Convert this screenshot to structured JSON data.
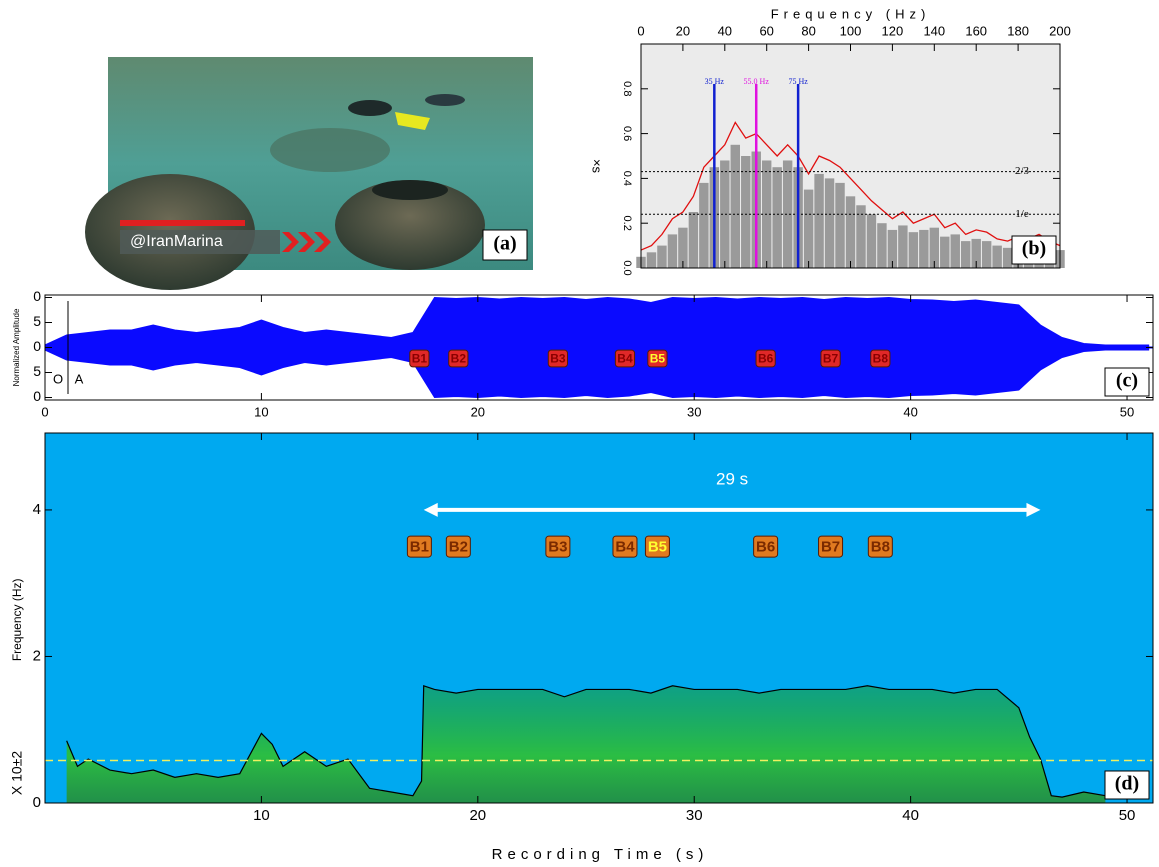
{
  "photo": {
    "caption": "@IranMarina",
    "label": "(a)"
  },
  "chart_data": [
    {
      "type": "spectrum",
      "label": "(b)",
      "xlabel": "Frequency (Hz)",
      "ylabel": "×s",
      "background": "#ebebeb",
      "x": [
        0,
        5,
        10,
        15,
        20,
        25,
        30,
        35,
        40,
        45,
        50,
        55,
        60,
        65,
        70,
        75,
        80,
        85,
        90,
        95,
        100,
        105,
        110,
        115,
        120,
        125,
        130,
        135,
        140,
        145,
        150,
        155,
        160,
        165,
        170,
        175,
        180,
        185,
        190,
        195,
        200
      ],
      "series": [
        {
          "color": "#9a9a9a",
          "values": [
            0.05,
            0.07,
            0.1,
            0.15,
            0.18,
            0.25,
            0.38,
            0.45,
            0.48,
            0.55,
            0.5,
            0.52,
            0.48,
            0.45,
            0.48,
            0.45,
            0.35,
            0.42,
            0.4,
            0.38,
            0.32,
            0.28,
            0.24,
            0.2,
            0.17,
            0.19,
            0.16,
            0.17,
            0.18,
            0.14,
            0.15,
            0.12,
            0.13,
            0.12,
            0.1,
            0.09,
            0.11,
            0.1,
            0.11,
            0.09,
            0.08
          ]
        },
        {
          "color": "#e01010",
          "values": [
            0.08,
            0.1,
            0.15,
            0.22,
            0.25,
            0.32,
            0.45,
            0.5,
            0.55,
            0.65,
            0.58,
            0.6,
            0.55,
            0.5,
            0.55,
            0.5,
            0.42,
            0.5,
            0.48,
            0.45,
            0.4,
            0.35,
            0.3,
            0.26,
            0.22,
            0.25,
            0.2,
            0.22,
            0.24,
            0.18,
            0.2,
            0.15,
            0.17,
            0.16,
            0.13,
            0.12,
            0.14,
            0.13,
            0.15,
            0.12,
            0.1
          ]
        }
      ],
      "xlim": [
        0,
        200
      ],
      "xticks": [
        0,
        20,
        40,
        60,
        80,
        100,
        120,
        140,
        160,
        180,
        200
      ],
      "ylim": [
        0,
        1
      ],
      "yticks": [
        {
          "value": 0,
          "label": "0.0"
        },
        0.2,
        0.4,
        0.6,
        0.8
      ],
      "vlines": [
        {
          "x": 35,
          "label": "35 Hz",
          "color": "#1020d0"
        },
        {
          "x": 55,
          "label": "55.0 Hz",
          "color": "#e010e0"
        },
        {
          "x": 75,
          "label": "75 Hz",
          "color": "#1020d0"
        }
      ],
      "hlines": [
        {
          "y": 0.43,
          "label": "2/3"
        },
        {
          "y": 0.24,
          "label": "1/e"
        }
      ]
    },
    {
      "type": "waveform",
      "label": "(c)",
      "ylabel": "Normalized Amplitude",
      "corner_text": [
        "O",
        "A"
      ],
      "color": "#0a0aff",
      "box_color": "#e02828",
      "x": [
        0,
        1,
        2,
        3,
        4,
        5,
        6,
        7,
        8,
        9,
        10,
        11,
        12,
        13,
        14,
        15,
        16,
        17,
        18,
        19,
        20,
        21,
        22,
        23,
        24,
        25,
        26,
        27,
        28,
        29,
        30,
        31,
        32,
        33,
        34,
        35,
        36,
        37,
        38,
        39,
        40,
        41,
        42,
        43,
        44,
        45,
        46,
        47,
        48,
        49,
        50,
        51
      ],
      "values": [
        0.05,
        0.25,
        0.3,
        0.35,
        0.35,
        0.45,
        0.35,
        0.3,
        0.35,
        0.4,
        0.55,
        0.4,
        0.3,
        0.35,
        0.3,
        0.25,
        0.2,
        0.3,
        1.0,
        0.98,
        1.0,
        0.97,
        1.0,
        0.98,
        1.0,
        0.96,
        1.0,
        0.97,
        0.9,
        1.0,
        0.98,
        1.0,
        0.97,
        1.0,
        0.98,
        1.0,
        0.96,
        1.0,
        0.98,
        1.0,
        0.96,
        0.95,
        0.92,
        0.95,
        0.9,
        0.85,
        0.45,
        0.2,
        0.08,
        0.05,
        0.05,
        0.05
      ],
      "xlim": [
        0,
        51.2
      ],
      "xticks": [
        0,
        10,
        20,
        30,
        40,
        50
      ],
      "ylim": [
        -1.05,
        1.05
      ],
      "yticks": [
        {
          "value": 1,
          "label": "0"
        },
        {
          "value": 0.5,
          "label": "5"
        },
        0,
        {
          "value": -0.5,
          "label": "5"
        },
        {
          "value": -1,
          "label": "0"
        }
      ],
      "markers": [
        {
          "text": "B1",
          "x": 17.3,
          "text_color": "#8a0000"
        },
        {
          "text": "B2",
          "x": 19.1,
          "text_color": "#8a0000"
        },
        {
          "text": "B3",
          "x": 23.7,
          "text_color": "#8a0000"
        },
        {
          "text": "B4",
          "x": 26.8,
          "text_color": "#8a0000"
        },
        {
          "text": "B5",
          "x": 28.3,
          "text_color": "#ffff30"
        },
        {
          "text": "B6",
          "x": 33.3,
          "text_color": "#8a0000"
        },
        {
          "text": "B7",
          "x": 36.3,
          "text_color": "#8a0000"
        },
        {
          "text": "B8",
          "x": 38.6,
          "text_color": "#8a0000"
        }
      ]
    },
    {
      "type": "spectrogram",
      "label": "(d)",
      "xlabel": "Recording Time (s)",
      "ylabel": "Frequency (Hz)",
      "yscale_label": "X 10±2",
      "background": "#00a9f0",
      "color": "#000000",
      "box_color": "#e07a20",
      "x": [
        1,
        1.5,
        2,
        3,
        4,
        5,
        6,
        7,
        8,
        9,
        10,
        10.5,
        11,
        12,
        13,
        14,
        15,
        16,
        17,
        17.4,
        17.5,
        18,
        19,
        20,
        21,
        22,
        23,
        24,
        25,
        26,
        27,
        28,
        29,
        30,
        31,
        32,
        33,
        34,
        35,
        36,
        37,
        38,
        39,
        40,
        41,
        42,
        43,
        44,
        45,
        45.5,
        46,
        46.5,
        47,
        48,
        49
      ],
      "values": [
        0.85,
        0.5,
        0.6,
        0.45,
        0.4,
        0.45,
        0.35,
        0.4,
        0.35,
        0.4,
        0.95,
        0.8,
        0.5,
        0.7,
        0.5,
        0.6,
        0.2,
        0.15,
        0.1,
        0.3,
        1.6,
        1.55,
        1.5,
        1.55,
        1.55,
        1.55,
        1.55,
        1.45,
        1.55,
        1.55,
        1.55,
        1.5,
        1.6,
        1.55,
        1.55,
        1.55,
        1.5,
        1.55,
        1.55,
        1.55,
        1.55,
        1.6,
        1.55,
        1.55,
        1.55,
        1.5,
        1.55,
        1.55,
        1.3,
        0.9,
        0.6,
        0.1,
        0.08,
        0.15,
        0.1
      ],
      "xlim": [
        0,
        51.2
      ],
      "xticks": [
        10,
        20,
        30,
        40,
        50
      ],
      "ylim": [
        0,
        5.05
      ],
      "yticks": [
        0,
        2,
        4
      ],
      "hline": {
        "y": 0.58,
        "color": "#f0f060"
      },
      "arrow": {
        "from": 17.5,
        "to": 46,
        "y": 4,
        "label": "29 s"
      },
      "marker_y": 3.5,
      "markers": [
        {
          "text": "B1",
          "x": 17.3,
          "text_color": "#7a2a00"
        },
        {
          "text": "B2",
          "x": 19.1,
          "text_color": "#7a2a00"
        },
        {
          "text": "B3",
          "x": 23.7,
          "text_color": "#7a2a00"
        },
        {
          "text": "B4",
          "x": 26.8,
          "text_color": "#7a2a00"
        },
        {
          "text": "B5",
          "x": 28.3,
          "text_color": "#ffff30"
        },
        {
          "text": "B6",
          "x": 33.3,
          "text_color": "#7a2a00"
        },
        {
          "text": "B7",
          "x": 36.3,
          "text_color": "#7a2a00"
        },
        {
          "text": "B8",
          "x": 38.6,
          "text_color": "#7a2a00"
        }
      ]
    }
  ]
}
